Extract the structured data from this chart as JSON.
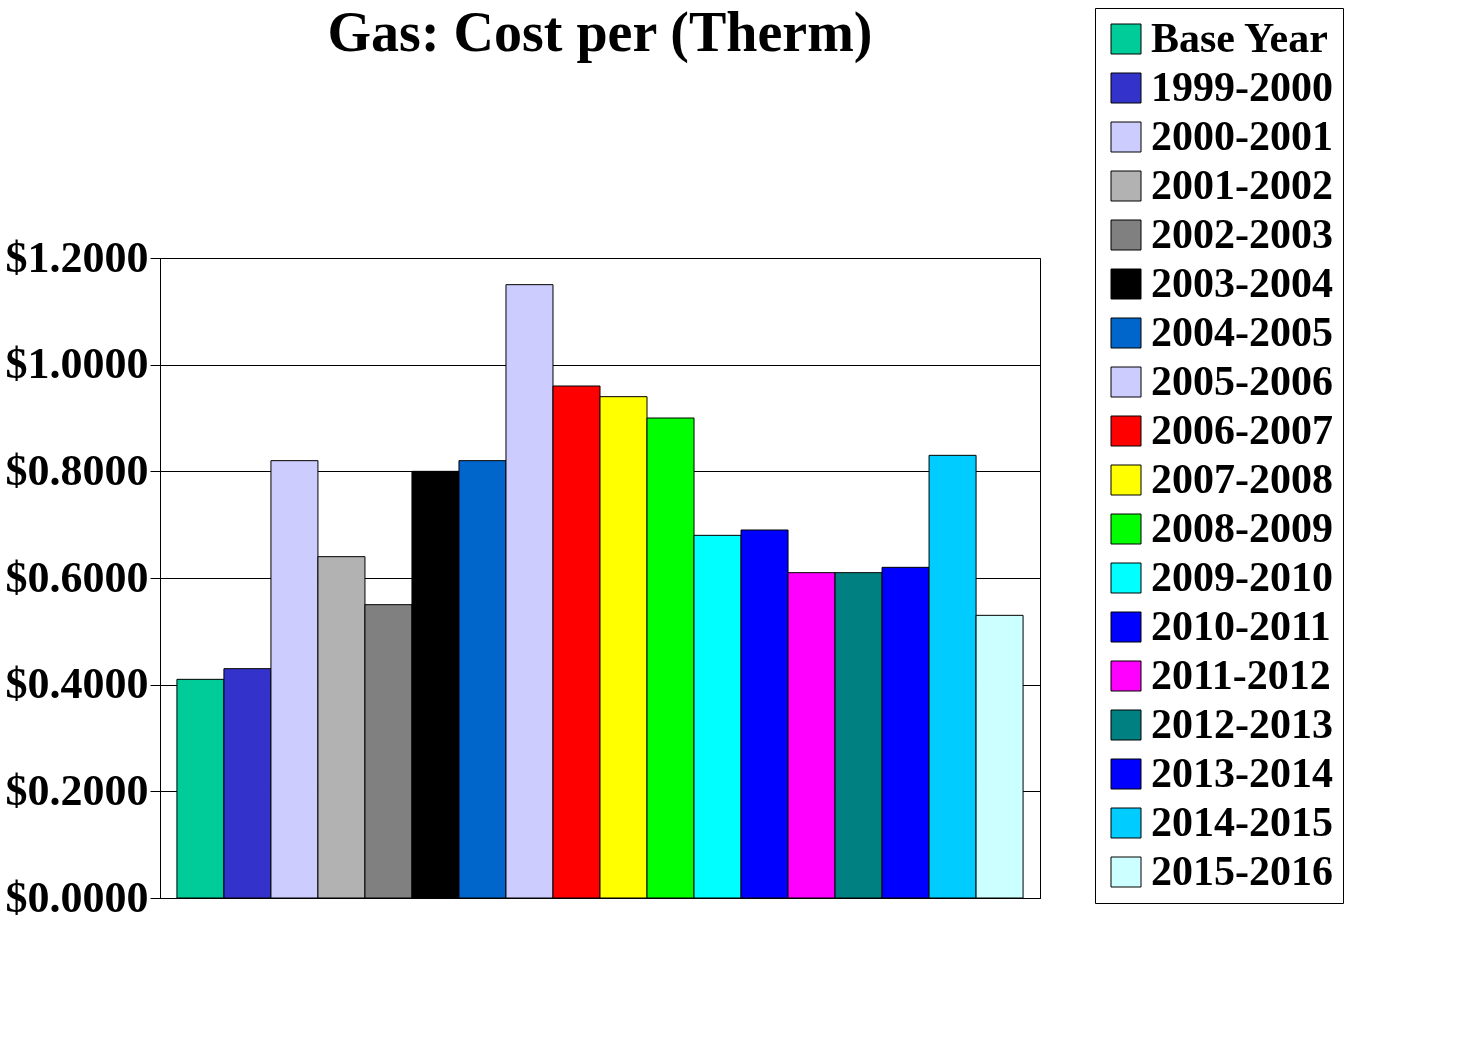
{
  "chart_data": {
    "type": "bar",
    "title": "Gas: Cost per (Therm)",
    "categories": [
      null
    ],
    "series": [
      {
        "name": "Base Year",
        "color": "#00cc99",
        "values": [
          0.41
        ]
      },
      {
        "name": "1999-2000",
        "color": "#3333cc",
        "values": [
          0.43
        ]
      },
      {
        "name": "2000-2001",
        "color": "#ccccff",
        "values": [
          0.82
        ]
      },
      {
        "name": "2001-2002",
        "color": "#b2b2b2",
        "values": [
          0.64
        ]
      },
      {
        "name": "2002-2003",
        "color": "#808080",
        "values": [
          0.55
        ]
      },
      {
        "name": "2003-2004",
        "color": "#000000",
        "values": [
          0.8
        ]
      },
      {
        "name": "2004-2005",
        "color": "#0066cc",
        "values": [
          0.82
        ]
      },
      {
        "name": "2005-2006",
        "color": "#ccccff",
        "values": [
          1.15
        ]
      },
      {
        "name": "2006-2007",
        "color": "#ff0000",
        "values": [
          0.96
        ]
      },
      {
        "name": "2007-2008",
        "color": "#ffff00",
        "values": [
          0.94
        ]
      },
      {
        "name": "2008-2009",
        "color": "#00ff00",
        "values": [
          0.9
        ]
      },
      {
        "name": "2009-2010",
        "color": "#00ffff",
        "values": [
          0.68
        ]
      },
      {
        "name": "2010-2011",
        "color": "#0000ff",
        "values": [
          0.69
        ]
      },
      {
        "name": "2011-2012",
        "color": "#ff00ff",
        "values": [
          0.61
        ]
      },
      {
        "name": "2012-2013",
        "color": "#008080",
        "values": [
          0.61
        ]
      },
      {
        "name": "2013-2014",
        "color": "#0000ff",
        "values": [
          0.62
        ]
      },
      {
        "name": "2014-2015",
        "color": "#00ccff",
        "values": [
          0.83
        ]
      },
      {
        "name": "2015-2016",
        "color": "#ccffff",
        "values": [
          0.53
        ]
      }
    ],
    "ylim": [
      0,
      1.2
    ],
    "yticks": [
      {
        "value": 0,
        "label": "$0.0000"
      },
      {
        "value": 0.2,
        "label": "$0.2000"
      },
      {
        "value": 0.4,
        "label": "$0.4000"
      },
      {
        "value": 0.6,
        "label": "$0.6000"
      },
      {
        "value": 0.8,
        "label": "$0.8000"
      },
      {
        "value": 1.0,
        "label": "$1.0000"
      },
      {
        "value": 1.2,
        "label": "$1.2000"
      }
    ],
    "grid": "y",
    "legend": "right",
    "tick_labels": "y"
  }
}
